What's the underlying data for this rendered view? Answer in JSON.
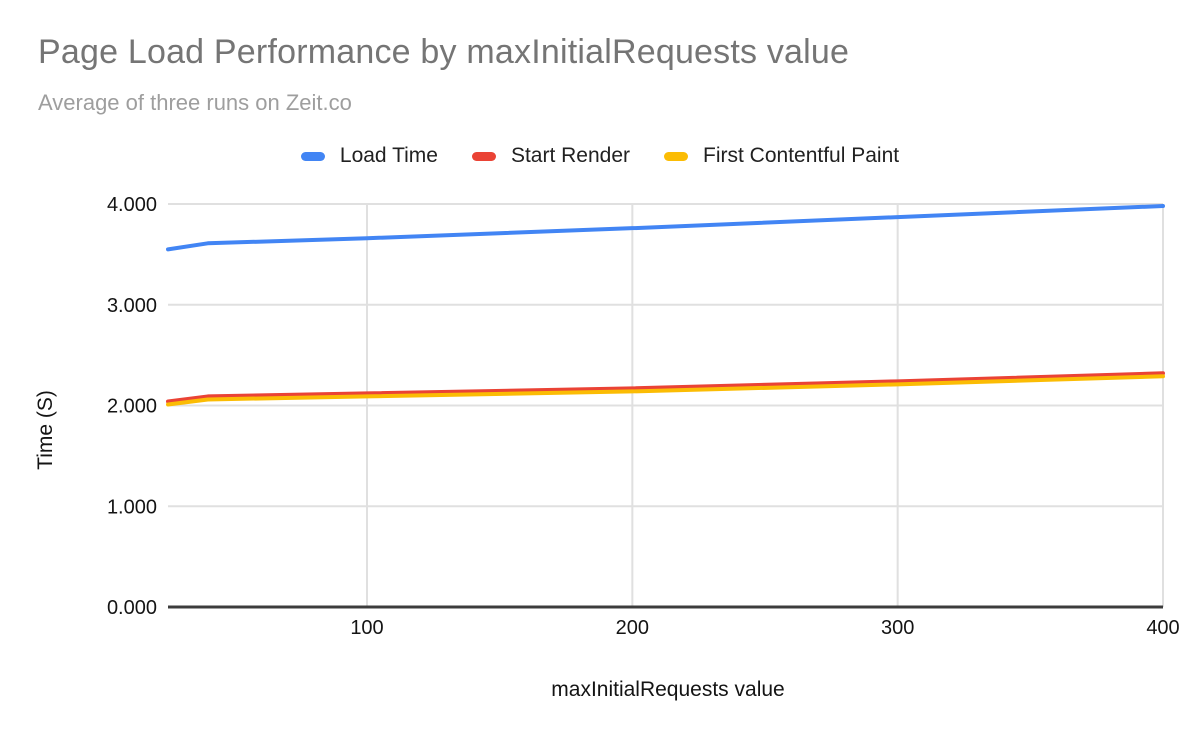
{
  "chart_data": {
    "type": "line",
    "title": "Page Load Performance by maxInitialRequests value",
    "subtitle": "Average of three runs on Zeit.co",
    "xlabel": "maxInitialRequests value",
    "ylabel": "Time (S)",
    "x": [
      25,
      40,
      100,
      200,
      300,
      400
    ],
    "series": [
      {
        "name": "Load Time",
        "color": "#4285F4",
        "values": [
          3.55,
          3.61,
          3.66,
          3.76,
          3.87,
          3.98
        ]
      },
      {
        "name": "Start Render",
        "color": "#EA4335",
        "values": [
          2.04,
          2.09,
          2.12,
          2.17,
          2.24,
          2.32
        ]
      },
      {
        "name": "First Contentful Paint",
        "color": "#FBBC04",
        "values": [
          2.01,
          2.06,
          2.09,
          2.14,
          2.21,
          2.29
        ]
      }
    ],
    "x_ticks": [
      {
        "value": 100,
        "label": "100"
      },
      {
        "value": 200,
        "label": "200"
      },
      {
        "value": 300,
        "label": "300"
      },
      {
        "value": 400,
        "label": "400"
      }
    ],
    "y_ticks": [
      {
        "value": 0,
        "label": "0.000"
      },
      {
        "value": 1,
        "label": "1.000"
      },
      {
        "value": 2,
        "label": "2.000"
      },
      {
        "value": 3,
        "label": "3.000"
      },
      {
        "value": 4,
        "label": "4.000"
      }
    ],
    "xlim": [
      25,
      400
    ],
    "ylim": [
      0,
      4
    ],
    "grid": true,
    "legend_position": "top",
    "gridline_color": "#E0E0E0",
    "baseline_color": "#3C3C3C",
    "line_width": 4
  }
}
